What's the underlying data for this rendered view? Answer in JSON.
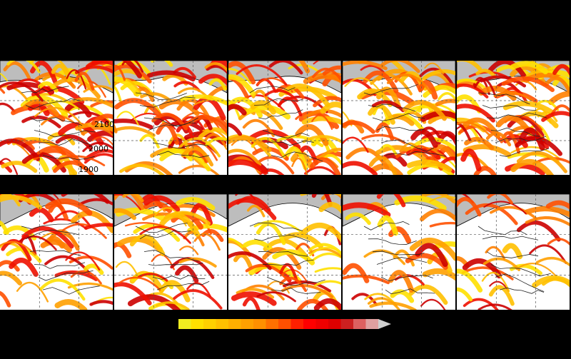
{
  "contour_labels": [
    "2100",
    "2000",
    "1900"
  ]
}
